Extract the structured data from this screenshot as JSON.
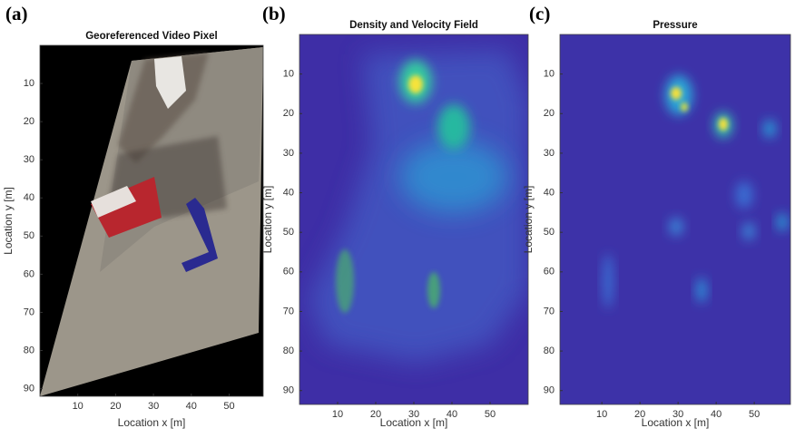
{
  "chart_data": [
    {
      "type": "image",
      "panel_label": "(a)",
      "title": "Georeferenced Video Pixel",
      "xlabel": "Location x [m]",
      "ylabel": "Location y [m]",
      "xlim": [
        0,
        59
      ],
      "ylim": [
        0,
        92
      ],
      "xticks": [
        10,
        20,
        30,
        40,
        50
      ],
      "yticks": [
        10,
        20,
        30,
        40,
        50,
        60,
        70,
        80,
        90
      ],
      "y_reversed": true
    },
    {
      "type": "heatmap",
      "panel_label": "(b)",
      "title": "Density and Velocity Field",
      "xlabel": "Location x [m]",
      "ylabel": "Location y [m]",
      "xlim": [
        0,
        60
      ],
      "ylim": [
        0,
        93.5
      ],
      "xticks": [
        10,
        20,
        30,
        40,
        50
      ],
      "yticks": [
        10,
        20,
        30,
        40,
        50,
        60,
        70,
        80,
        90
      ],
      "y_reversed": true
    },
    {
      "type": "heatmap",
      "panel_label": "(c)",
      "title": "Pressure",
      "xlabel": "Location x [m]",
      "ylabel": "Location y [m]",
      "xlim": [
        -1,
        59.5
      ],
      "ylim": [
        0,
        93.5
      ],
      "xticks": [
        10,
        20,
        30,
        40,
        50
      ],
      "yticks": [
        10,
        20,
        30,
        40,
        50,
        60,
        70,
        80,
        90
      ],
      "y_reversed": true
    }
  ]
}
